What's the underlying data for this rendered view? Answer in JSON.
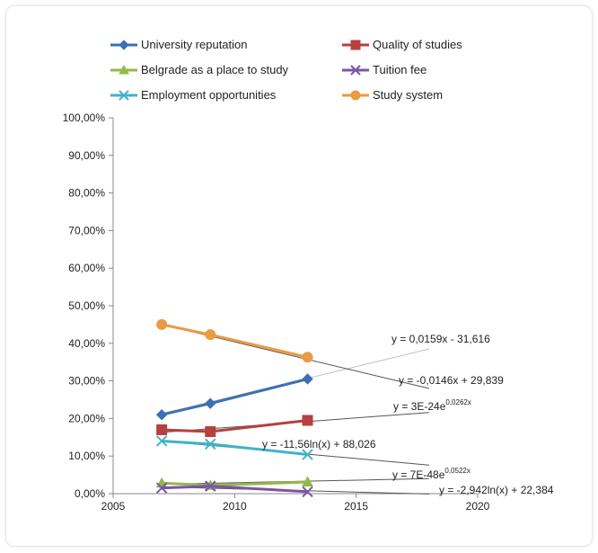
{
  "chart_data": {
    "type": "line",
    "title": "",
    "xlabel": "",
    "ylabel": "",
    "xlim": [
      2005,
      2020
    ],
    "ylim": [
      0,
      100
    ],
    "x_ticks": [
      "2005",
      "2010",
      "2015",
      "2020"
    ],
    "y_ticks": [
      "0,00%",
      "10,00%",
      "20,00%",
      "30,00%",
      "40,00%",
      "50,00%",
      "60,00%",
      "70,00%",
      "80,00%",
      "90,00%",
      "100,00%"
    ],
    "grid": false,
    "legend_position": "top",
    "x": [
      2007,
      2009,
      2013
    ],
    "series": [
      {
        "name": "University reputation",
        "color": "#3d6fb5",
        "marker": "diamond",
        "values": [
          21.0,
          24.0,
          30.5
        ]
      },
      {
        "name": "Quality of studies",
        "color": "#b5403d",
        "marker": "square",
        "values": [
          17.0,
          16.5,
          19.5
        ]
      },
      {
        "name": "Belgrade as a place to study",
        "color": "#94b84a",
        "marker": "triangle",
        "values": [
          2.8,
          2.2,
          3.1
        ]
      },
      {
        "name": "Tuition fee",
        "color": "#7a55a6",
        "marker": "x",
        "values": [
          1.5,
          2.0,
          0.5
        ]
      },
      {
        "name": "Employment opportunities",
        "color": "#3fb3c7",
        "marker": "x",
        "values": [
          14.0,
          13.2,
          10.4
        ]
      },
      {
        "name": "Study system",
        "color": "#ec9a41",
        "marker": "circle",
        "values": [
          45.0,
          42.3,
          36.3
        ]
      }
    ],
    "trendlines": [
      {
        "equation": "y = 0,0159x - 31,616",
        "color": "#bdbdbd",
        "x": [
          2007,
          2018
        ],
        "y": [
          21.3,
          38.5
        ]
      },
      {
        "equation": "y = -0,0146x + 29,839",
        "color": "#555555",
        "x": [
          2007,
          2018
        ],
        "y": [
          45.0,
          28.0
        ]
      },
      {
        "equation": "y = 3E-24e",
        "superscript": "0,0262x",
        "color": "#555555",
        "x": [
          2007,
          2018
        ],
        "y": [
          16.3,
          21.6
        ]
      },
      {
        "equation": "y = -11,56ln(x) + 88,026",
        "color": "#555555",
        "x": [
          2007,
          2018
        ],
        "y": [
          14.0,
          7.6
        ]
      },
      {
        "equation": "y = 7E-48e",
        "superscript": "0,0522x",
        "color": "#555555",
        "x": [
          2007,
          2018
        ],
        "y": [
          2.5,
          4.0
        ]
      },
      {
        "equation": "y = -2,942ln(x) + 22,384",
        "color": "#555555",
        "x": [
          2007,
          2018
        ],
        "y": [
          1.8,
          -0.1
        ]
      }
    ]
  }
}
